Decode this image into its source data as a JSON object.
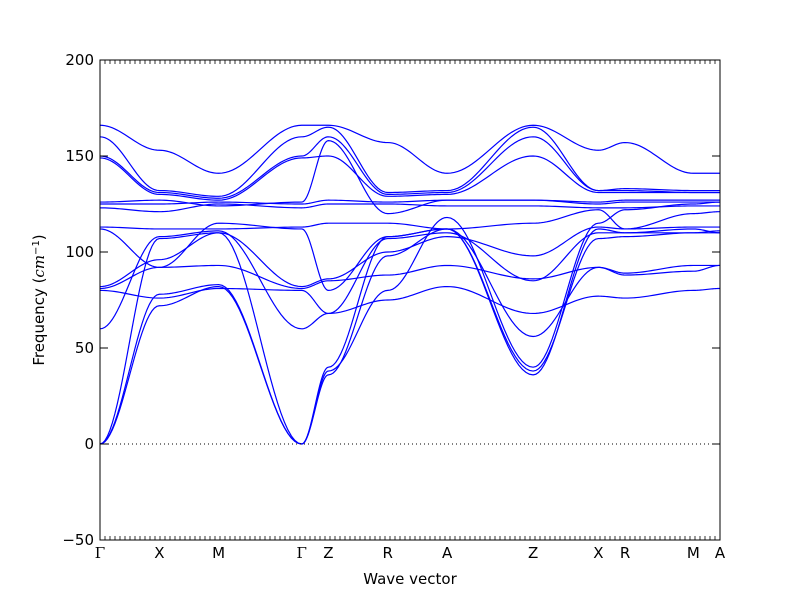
{
  "chart_data": {
    "type": "line",
    "title": "",
    "xlabel": "Wave vector",
    "ylabel_prefix": "Frequency (",
    "ylabel_unit_base": "cm",
    "ylabel_unit_exp": "−1",
    "ylabel_suffix": ")",
    "ylim": [
      -50,
      200
    ],
    "y_ticks": [
      -50,
      0,
      50,
      100,
      150,
      200
    ],
    "y_tick_labels": [
      "−50",
      "0",
      "50",
      "100",
      "150",
      "200"
    ],
    "k_labels": [
      "Γ",
      "X",
      "M",
      "Γ",
      "Z",
      "R",
      "A",
      "Z",
      "X",
      "R",
      "M",
      "A"
    ],
    "k_positions": [
      0,
      1,
      2,
      3.4,
      3.85,
      4.85,
      5.85,
      7.3,
      8.4,
      8.85,
      10,
      10.45
    ],
    "zero_line": true,
    "line_color": "#0000ff",
    "series": [
      {
        "values": [
          0,
          72,
          82,
          0,
          38,
          80,
          118,
          40,
          115,
          122,
          125,
          126
        ]
      },
      {
        "values": [
          0,
          78,
          83,
          0,
          36,
          98,
          112,
          36,
          112,
          110,
          112,
          110
        ]
      },
      {
        "values": [
          0,
          107,
          110,
          0,
          40,
          108,
          112,
          38,
          107,
          108,
          110,
          111
        ]
      },
      {
        "values": [
          60,
          108,
          111,
          60,
          68,
          107,
          110,
          85,
          110,
          110,
          110,
          110
        ]
      },
      {
        "values": [
          80,
          76,
          81,
          80,
          68,
          75,
          82,
          68,
          77,
          76,
          80,
          81
        ]
      },
      {
        "values": [
          81,
          92,
          93,
          81,
          85,
          88,
          93,
          86,
          92,
          89,
          93,
          93
        ]
      },
      {
        "values": [
          82,
          96,
          110,
          82,
          86,
          100,
          108,
          98,
          113,
          112,
          113,
          113
        ]
      },
      {
        "values": [
          112,
          92,
          115,
          112,
          80,
          108,
          112,
          56,
          92,
          88,
          90,
          93
        ]
      },
      {
        "values": [
          113,
          112,
          112,
          113,
          115,
          115,
          112,
          115,
          122,
          112,
          120,
          121
        ]
      },
      {
        "values": [
          123,
          121,
          125,
          123,
          125,
          125,
          124,
          124,
          123,
          123,
          124,
          124
        ]
      },
      {
        "values": [
          125,
          125,
          126,
          125,
          127,
          126,
          127,
          127,
          125,
          126,
          126,
          126
        ]
      },
      {
        "values": [
          126,
          127,
          124,
          126,
          158,
          120,
          127,
          127,
          126,
          127,
          127,
          127
        ]
      },
      {
        "values": [
          149,
          130,
          127,
          149,
          150,
          129,
          130,
          150,
          131,
          131,
          131,
          131
        ]
      },
      {
        "values": [
          150,
          131,
          128,
          150,
          160,
          130,
          131,
          160,
          132,
          132,
          131,
          131
        ]
      },
      {
        "values": [
          160,
          132,
          129,
          160,
          165,
          131,
          132,
          165,
          132,
          133,
          132,
          132
        ]
      },
      {
        "values": [
          166,
          153,
          141,
          166,
          166,
          157,
          141,
          166,
          153,
          157,
          141,
          141
        ]
      }
    ]
  }
}
